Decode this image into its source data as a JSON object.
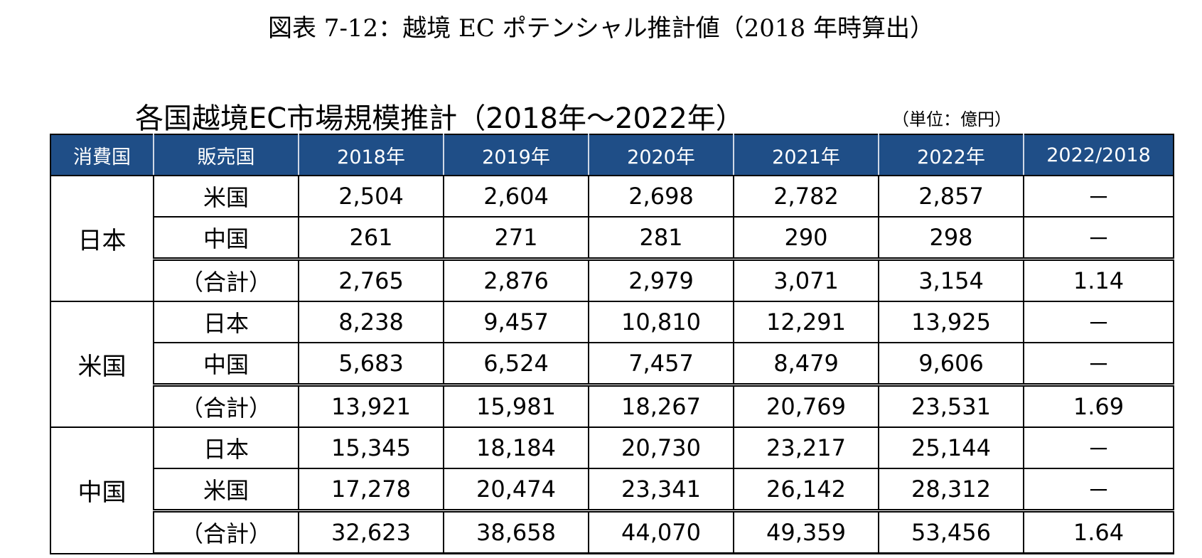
{
  "figure_title": "図表 7-12：越境 EC ポテンシャル推計値（2018 年時算出）",
  "table_title": "各国越境EC市場規模推計（2018年～2022年）",
  "unit": "（単位：億円）",
  "columns": [
    "消費国",
    "販売国",
    "2018年",
    "2019年",
    "2020年",
    "2021年",
    "2022年",
    "2022/2018"
  ],
  "groups": [
    {
      "consumer": "日本",
      "rows": [
        {
          "seller": "米国",
          "values": [
            "2,504",
            "2,604",
            "2,698",
            "2,782",
            "2,857"
          ],
          "ratio": "－"
        },
        {
          "seller": "中国",
          "values": [
            "261",
            "271",
            "281",
            "290",
            "298"
          ],
          "ratio": "－"
        },
        {
          "seller": "（合計）",
          "values": [
            "2,765",
            "2,876",
            "2,979",
            "3,071",
            "3,154"
          ],
          "ratio": "1.14"
        }
      ]
    },
    {
      "consumer": "米国",
      "rows": [
        {
          "seller": "日本",
          "values": [
            "8,238",
            "9,457",
            "10,810",
            "12,291",
            "13,925"
          ],
          "ratio": "－"
        },
        {
          "seller": "中国",
          "values": [
            "5,683",
            "6,524",
            "7,457",
            "8,479",
            "9,606"
          ],
          "ratio": "－"
        },
        {
          "seller": "（合計）",
          "values": [
            "13,921",
            "15,981",
            "18,267",
            "20,769",
            "23,531"
          ],
          "ratio": "1.69"
        }
      ]
    },
    {
      "consumer": "中国",
      "rows": [
        {
          "seller": "日本",
          "values": [
            "15,345",
            "18,184",
            "20,730",
            "23,217",
            "25,144"
          ],
          "ratio": "－"
        },
        {
          "seller": "米国",
          "values": [
            "17,278",
            "20,474",
            "23,341",
            "26,142",
            "28,312"
          ],
          "ratio": "－"
        },
        {
          "seller": "（合計）",
          "values": [
            "32,623",
            "38,658",
            "44,070",
            "49,359",
            "53,456"
          ],
          "ratio": "1.64"
        }
      ]
    }
  ],
  "colors": {
    "header_background": "#1f4e87",
    "header_text": "#ffffff"
  }
}
